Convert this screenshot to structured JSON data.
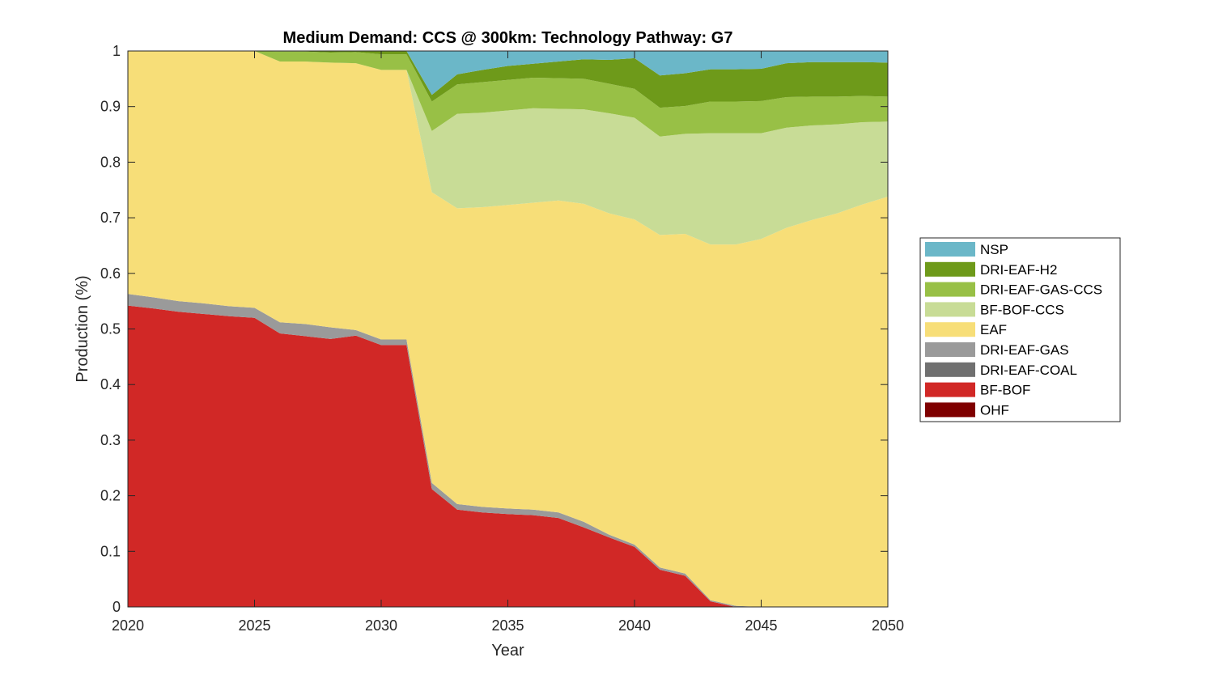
{
  "chart_data": {
    "type": "area",
    "title": "Medium Demand: CCS @ 300km: Technology Pathway: G7",
    "xlabel": "Year",
    "ylabel": "Production (%)",
    "xlim": [
      2020,
      2050
    ],
    "ylim": [
      0,
      1
    ],
    "x_ticks": [
      2020,
      2025,
      2030,
      2035,
      2040,
      2045,
      2050
    ],
    "y_ticks": [
      0,
      0.1,
      0.2,
      0.3,
      0.4,
      0.5,
      0.6,
      0.7,
      0.8,
      0.9,
      1
    ],
    "y_tick_labels": [
      "0",
      "0.1",
      "0.2",
      "0.3",
      "0.4",
      "0.5",
      "0.6",
      "0.7",
      "0.8",
      "0.9",
      "1"
    ],
    "grid": false,
    "stacked": true,
    "legend_position": "right",
    "x": [
      2020,
      2021,
      2022,
      2023,
      2024,
      2025,
      2026,
      2027,
      2028,
      2029,
      2030,
      2031,
      2032,
      2033,
      2034,
      2035,
      2036,
      2037,
      2038,
      2039,
      2040,
      2041,
      2042,
      2043,
      2044,
      2045,
      2046,
      2047,
      2048,
      2049,
      2050
    ],
    "series": [
      {
        "name": "OHF",
        "color": "#7f0000",
        "values": [
          0,
          0,
          0,
          0,
          0,
          0,
          0,
          0,
          0,
          0,
          0,
          0,
          0,
          0,
          0,
          0,
          0,
          0,
          0,
          0,
          0,
          0,
          0,
          0,
          0,
          0,
          0,
          0,
          0,
          0,
          0
        ]
      },
      {
        "name": "BF-BOF",
        "color": "#d12826",
        "values": [
          0.542,
          0.537,
          0.531,
          0.527,
          0.523,
          0.52,
          0.492,
          0.487,
          0.482,
          0.488,
          0.471,
          0.471,
          0.212,
          0.175,
          0.17,
          0.167,
          0.165,
          0.16,
          0.143,
          0.125,
          0.108,
          0.067,
          0.056,
          0.01,
          0,
          0,
          0,
          0,
          0,
          0,
          0
        ]
      },
      {
        "name": "DRI-EAF-COAL",
        "color": "#707070",
        "values": [
          0,
          0,
          0,
          0,
          0,
          0,
          0,
          0,
          0,
          0,
          0,
          0,
          0,
          0,
          0,
          0,
          0,
          0,
          0,
          0,
          0,
          0,
          0,
          0,
          0,
          0,
          0,
          0,
          0,
          0,
          0
        ]
      },
      {
        "name": "DRI-EAF-GAS",
        "color": "#9a9a9a",
        "values": [
          0.021,
          0.02,
          0.019,
          0.019,
          0.018,
          0.018,
          0.02,
          0.022,
          0.021,
          0.01,
          0.01,
          0.01,
          0.011,
          0.01,
          0.01,
          0.01,
          0.01,
          0.01,
          0.01,
          0.005,
          0.004,
          0.004,
          0.004,
          0.002,
          0.002,
          0,
          0,
          0,
          0,
          0,
          0
        ]
      },
      {
        "name": "EAF",
        "color": "#f7de78",
        "values": [
          0.437,
          0.443,
          0.45,
          0.454,
          0.459,
          0.462,
          0.469,
          0.472,
          0.476,
          0.48,
          0.485,
          0.485,
          0.523,
          0.532,
          0.539,
          0.546,
          0.552,
          0.561,
          0.572,
          0.578,
          0.585,
          0.598,
          0.611,
          0.64,
          0.65,
          0.662,
          0.682,
          0.696,
          0.708,
          0.724,
          0.738
        ]
      },
      {
        "name": "BF-BOF-CCS",
        "color": "#c8dc96",
        "values": [
          0,
          0,
          0,
          0,
          0,
          0,
          0,
          0,
          0,
          0,
          0,
          0,
          0.11,
          0.17,
          0.17,
          0.17,
          0.17,
          0.165,
          0.17,
          0.18,
          0.183,
          0.177,
          0.18,
          0.2,
          0.2,
          0.19,
          0.18,
          0.17,
          0.16,
          0.148,
          0.135
        ]
      },
      {
        "name": "DRI-EAF-GAS-CCS",
        "color": "#98c046",
        "values": [
          0,
          0,
          0,
          0,
          0,
          0,
          0.018,
          0.018,
          0.018,
          0.02,
          0.028,
          0.028,
          0.053,
          0.053,
          0.055,
          0.055,
          0.055,
          0.055,
          0.055,
          0.053,
          0.052,
          0.052,
          0.05,
          0.057,
          0.057,
          0.058,
          0.055,
          0.052,
          0.05,
          0.047,
          0.045
        ]
      },
      {
        "name": "DRI-EAF-H2",
        "color": "#6e9a1a",
        "values": [
          0,
          0,
          0,
          0,
          0,
          0.002,
          0.001,
          0.001,
          0.003,
          0.002,
          0.006,
          0.006,
          0.012,
          0.018,
          0.022,
          0.025,
          0.025,
          0.03,
          0.035,
          0.043,
          0.055,
          0.058,
          0.059,
          0.058,
          0.058,
          0.058,
          0.061,
          0.062,
          0.062,
          0.061,
          0.061
        ]
      },
      {
        "name": "NSP",
        "color": "#6bb7c8",
        "values": [
          0,
          0,
          0,
          0,
          0,
          0,
          0,
          0,
          0,
          0,
          0,
          0,
          0.079,
          0.042,
          0.034,
          0.027,
          0.023,
          0.019,
          0.015,
          0.016,
          0.013,
          0.044,
          0.04,
          0.033,
          0.033,
          0.032,
          0.022,
          0.02,
          0.02,
          0.02,
          0.021
        ]
      }
    ],
    "legend_order": [
      "NSP",
      "DRI-EAF-H2",
      "DRI-EAF-GAS-CCS",
      "BF-BOF-CCS",
      "EAF",
      "DRI-EAF-GAS",
      "DRI-EAF-COAL",
      "BF-BOF",
      "OHF"
    ]
  }
}
